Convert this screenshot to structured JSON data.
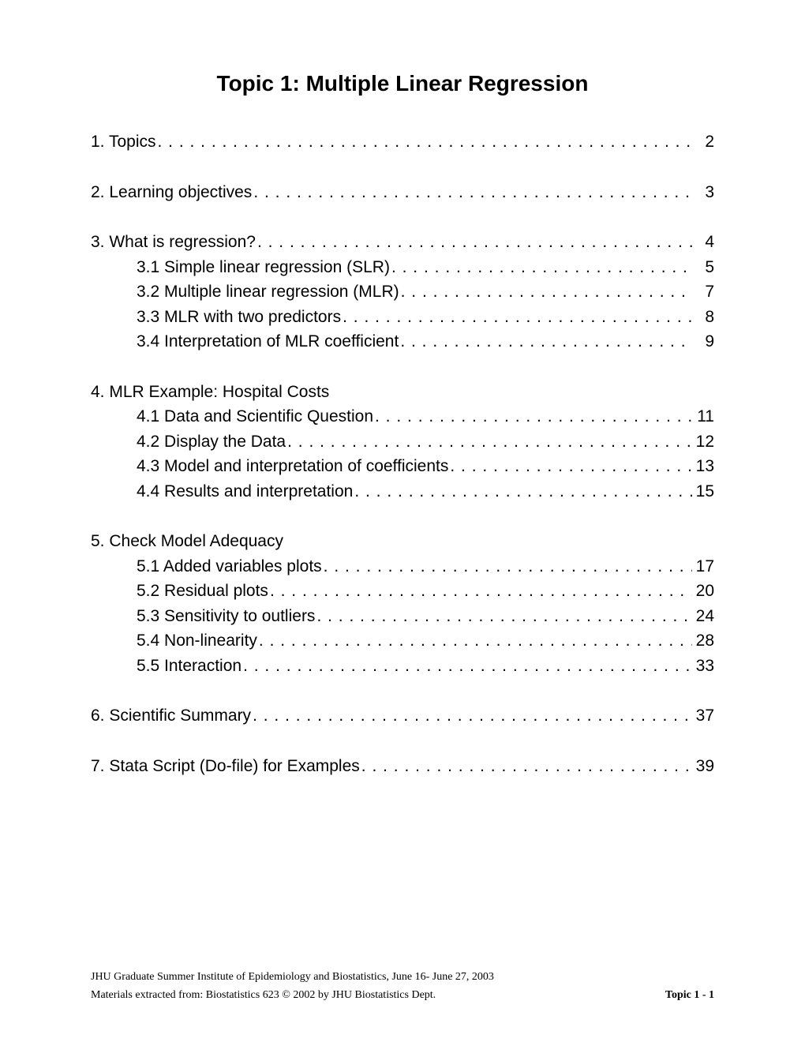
{
  "title": "Topic 1: Multiple Linear Regression",
  "entries": [
    {
      "type": "entry",
      "level": 1,
      "label": "1. Topics",
      "page": "2",
      "dots": true
    },
    {
      "type": "gap"
    },
    {
      "type": "entry",
      "level": 1,
      "label": "2. Learning objectives",
      "page": "3",
      "dots": true
    },
    {
      "type": "gap"
    },
    {
      "type": "entry",
      "level": 1,
      "label": "3. What is regression? ",
      "page": "4",
      "dots": true
    },
    {
      "type": "entry",
      "level": 2,
      "label": "3.1 Simple linear regression (SLR)",
      "page": "5",
      "dots": true
    },
    {
      "type": "entry",
      "level": 2,
      "label": "3.2 Multiple linear regression (MLR)",
      "page": "7",
      "dots": true
    },
    {
      "type": "entry",
      "level": 2,
      "label": "3.3 MLR with two predictors ",
      "page": "8",
      "dots": true
    },
    {
      "type": "entry",
      "level": 2,
      "label": "3.4 Interpretation of MLR coefficient",
      "page": "9",
      "dots": true
    },
    {
      "type": "gap"
    },
    {
      "type": "entry",
      "level": 1,
      "label": "4. MLR Example: Hospital Costs",
      "page": "",
      "dots": false
    },
    {
      "type": "entry",
      "level": 2,
      "label": "4.1 Data and Scientific Question ",
      "page": "11",
      "dots": true
    },
    {
      "type": "entry",
      "level": 2,
      "label": "4.2 Display the Data ",
      "page": "12",
      "dots": true
    },
    {
      "type": "entry",
      "level": 2,
      "label": "4.3 Model and interpretation of coefficients ",
      "page": "13",
      "dots": true
    },
    {
      "type": "entry",
      "level": 2,
      "label": "4.4 Results and interpretation",
      "page": "15",
      "dots": true
    },
    {
      "type": "gap"
    },
    {
      "type": "entry",
      "level": 1,
      "label": "5. Check Model Adequacy",
      "page": "",
      "dots": false
    },
    {
      "type": "entry",
      "level": 2,
      "label": "5.1 Added variables plots ",
      "page": "17",
      "dots": true
    },
    {
      "type": "entry",
      "level": 2,
      "label": "5.2 Residual plots ",
      "page": "20",
      "dots": true
    },
    {
      "type": "entry",
      "level": 2,
      "label": "5.3 Sensitivity to outliers ",
      "page": "24",
      "dots": true
    },
    {
      "type": "entry",
      "level": 2,
      "label": "5.4 Non-linearity ",
      "page": "28",
      "dots": true
    },
    {
      "type": "entry",
      "level": 2,
      "label": "5.5 Interaction",
      "page": "33",
      "dots": true
    },
    {
      "type": "gap"
    },
    {
      "type": "entry",
      "level": 1,
      "label": "6. Scientific Summary",
      "page": "37",
      "dots": true
    },
    {
      "type": "gap"
    },
    {
      "type": "entry",
      "level": 1,
      "label": "7. Stata Script (Do-file) for Examples ",
      "page": "39",
      "dots": true
    }
  ],
  "footer": {
    "line1": "JHU Graduate Summer Institute of Epidemiology and Biostatistics, June 16- June 27, 2003",
    "line2": "Materials extracted from: Biostatistics 623 © 2002 by JHU Biostatistics Dept.",
    "pageLabel": "Topic 1 - 1"
  }
}
